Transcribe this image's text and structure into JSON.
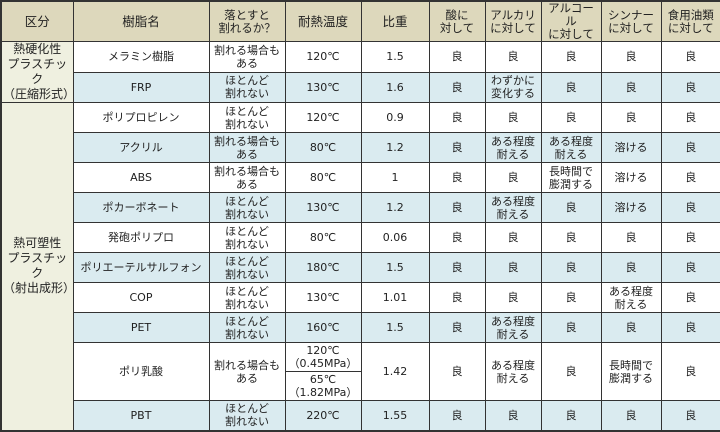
{
  "headers": [
    "区分",
    "樹脂名",
    "落とすと\n割れるか？",
    "耐熱温度",
    "比重",
    "酸に\n対して",
    "アルカリ\nに対して",
    "アルコール\nに対して",
    "シンナー\nに対して",
    "食用油類\nに対して"
  ],
  "categories": [
    {
      "label": "熱硬化性\nプラスチック\n（圧縮形式）",
      "rows": 2
    },
    {
      "label": "熱可塑性\nプラスチック\n（射出成形）",
      "rows": 10
    }
  ],
  "rows": [
    {
      "name": "メラミン樹脂",
      "drop": "割れる場合も\nある",
      "heat": "120℃",
      "gravity": "1.5",
      "acid": "良",
      "alkali": "良",
      "alcohol": "良",
      "thinner": "良",
      "oil": "良"
    },
    {
      "name": "FRP",
      "drop": "ほとんど\n割れない",
      "heat": "130℃",
      "gravity": "1.6",
      "acid": "良",
      "alkali": "わずかに\n変化する",
      "alcohol": "良",
      "thinner": "良",
      "oil": "良"
    },
    {
      "name": "ポリプロピレン",
      "drop": "ほとんど\n割れない",
      "heat": "120℃",
      "gravity": "0.9",
      "acid": "良",
      "alkali": "良",
      "alcohol": "良",
      "thinner": "良",
      "oil": "良"
    },
    {
      "name": "アクリル",
      "drop": "割れる場合も\nある",
      "heat": "80℃",
      "gravity": "1.2",
      "acid": "良",
      "alkali": "ある程度\n耐える",
      "alcohol": "ある程度\n耐える",
      "thinner": "溶ける",
      "oil": "良"
    },
    {
      "name": "ABS",
      "drop": "割れる場合も\nある",
      "heat": "80℃",
      "gravity": "1",
      "acid": "良",
      "alkali": "良",
      "alcohol": "長時間で\n膨潤する",
      "thinner": "溶ける",
      "oil": "良"
    },
    {
      "name": "ポカーボネート",
      "drop": "ほとんど\n割れない",
      "heat": "130℃",
      "gravity": "1.2",
      "acid": "良",
      "alkali": "ある程度\n耐える",
      "alcohol": "良",
      "thinner": "溶ける",
      "oil": "良"
    },
    {
      "name": "発砲ポリプロ",
      "drop": "ほとんど\n割れない",
      "heat": "80℃",
      "gravity": "0.06",
      "acid": "良",
      "alkali": "良",
      "alcohol": "良",
      "thinner": "良",
      "oil": "良"
    },
    {
      "name": "ポリエーテルサルフォン",
      "drop": "ほとんど\n割れない",
      "heat": "180℃",
      "gravity": "1.5",
      "acid": "良",
      "alkali": "良",
      "alcohol": "良",
      "thinner": "良",
      "oil": "良"
    },
    {
      "name": "COP",
      "drop": "ほとんど\n割れない",
      "heat": "130℃",
      "gravity": "1.01",
      "acid": "良",
      "alkali": "良",
      "alcohol": "良",
      "thinner": "ある程度\n耐える",
      "oil": "良"
    },
    {
      "name": "PET",
      "drop": "ほとんど\n割れない",
      "heat": "160℃",
      "gravity": "1.5",
      "acid": "良",
      "alkali": "ある程度\n耐える",
      "alcohol": "良",
      "thinner": "良",
      "oil": "良"
    },
    {
      "name": "ポリ乳酸",
      "drop": "割れる場合も\nある",
      "heat": "120℃\n（0.45MPa）",
      "heat2": "65℃\n（1.82MPa）",
      "gravity": "1.42",
      "acid": "良",
      "alkali": "ある程度\n耐える",
      "alcohol": "良",
      "thinner": "長時間で\n膨潤する",
      "oil": "良"
    },
    {
      "name": "PBT",
      "drop": "ほとんど\n割れない",
      "heat": "220℃",
      "gravity": "1.55",
      "acid": "良",
      "alkali": "良",
      "alcohol": "良",
      "thinner": "良",
      "oil": "良"
    }
  ],
  "colors": {
    "header": "#ddd8bc",
    "category": "#eff0e0",
    "row_alt": "#daebf0",
    "border": "#333333"
  }
}
